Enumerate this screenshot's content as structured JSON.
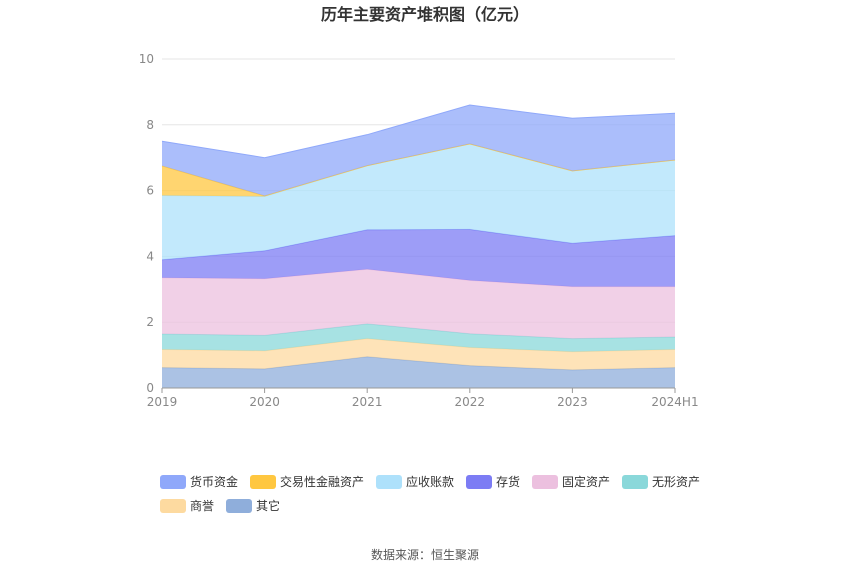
{
  "chart_data": {
    "type": "area",
    "stacked": true,
    "title": "历年主要资产堆积图（亿元）",
    "categories": [
      "2019",
      "2020",
      "2021",
      "2022",
      "2023",
      "2024H1"
    ],
    "ylim": [
      0,
      10
    ],
    "yticks": [
      "0",
      "2",
      "4",
      "6",
      "8",
      "10"
    ],
    "grid": true,
    "legend_position": "bottom",
    "series": [
      {
        "name": "其它",
        "color": "#8FAEDB",
        "values": [
          0.62,
          0.58,
          0.95,
          0.68,
          0.55,
          0.62
        ]
      },
      {
        "name": "商誉",
        "color": "#FDDAA0",
        "values": [
          0.55,
          0.55,
          0.55,
          0.55,
          0.55,
          0.55
        ]
      },
      {
        "name": "无形资产",
        "color": "#8AD8DA",
        "values": [
          0.47,
          0.47,
          0.45,
          0.42,
          0.4,
          0.38
        ]
      },
      {
        "name": "固定资产",
        "color": "#ECC0DF",
        "values": [
          1.71,
          1.72,
          1.66,
          1.62,
          1.58,
          1.53
        ]
      },
      {
        "name": "存货",
        "color": "#7C7CF4",
        "values": [
          0.55,
          0.85,
          1.2,
          1.55,
          1.32,
          1.55
        ]
      },
      {
        "name": "应收账款",
        "color": "#AEE1FB",
        "values": [
          1.95,
          1.65,
          1.95,
          2.6,
          2.2,
          2.3
        ]
      },
      {
        "name": "交易性金融资产",
        "color": "#FFC740",
        "values": [
          0.9,
          0.02,
          0.0,
          0.0,
          0.0,
          0.0
        ]
      },
      {
        "name": "货币资金",
        "color": "#8FA8FA",
        "values": [
          0.75,
          1.16,
          0.94,
          1.18,
          1.6,
          1.42
        ]
      }
    ],
    "legend_order": [
      "货币资金",
      "交易性金融资产",
      "应收账款",
      "存货",
      "固定资产",
      "无形资产",
      "商誉",
      "其它"
    ],
    "source": "数据来源：恒生聚源"
  }
}
